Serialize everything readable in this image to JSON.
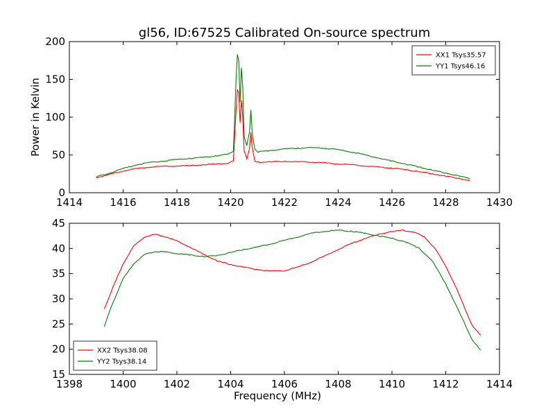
{
  "title": "gl56, ID:67525 Calibrated On-source spectrum",
  "chart_data": [
    {
      "type": "line",
      "ylabel": "Power in Kelvin",
      "xlabel": "",
      "xlim": [
        1414,
        1430
      ],
      "ylim": [
        0,
        200
      ],
      "xticks": [
        "1414",
        "1416",
        "1418",
        "1420",
        "1422",
        "1424",
        "1426",
        "1428",
        "1430"
      ],
      "yticks": [
        "0",
        "50",
        "100",
        "150",
        "200"
      ],
      "legend_position": "top-right",
      "series": [
        {
          "name": "XX1 Tsys35.57",
          "color": "#ff0000",
          "x": [
            1415.0,
            1415.5,
            1416.0,
            1416.5,
            1417.0,
            1417.5,
            1418.0,
            1418.5,
            1419.0,
            1419.5,
            1419.9,
            1420.1,
            1420.2,
            1420.25,
            1420.3,
            1420.35,
            1420.4,
            1420.45,
            1420.5,
            1420.6,
            1420.7,
            1420.75,
            1420.8,
            1420.9,
            1421.0,
            1421.5,
            1422.0,
            1422.5,
            1423.0,
            1423.5,
            1424.0,
            1424.5,
            1425.0,
            1425.5,
            1426.0,
            1426.5,
            1427.0,
            1427.5,
            1428.0,
            1428.5,
            1428.9
          ],
          "values": [
            20,
            24,
            29,
            32,
            34,
            35,
            35.5,
            36,
            37,
            38,
            39,
            42,
            110,
            136,
            132,
            93,
            122,
            100,
            55,
            45,
            58,
            80,
            60,
            42,
            40.5,
            41,
            41.5,
            41,
            40.5,
            39.5,
            38,
            37,
            35.5,
            34,
            32.5,
            30.5,
            28,
            25,
            22,
            19,
            16
          ]
        },
        {
          "name": "YY1 Tsys46.16",
          "color": "#008000",
          "x": [
            1415.0,
            1415.5,
            1416.0,
            1416.5,
            1417.0,
            1417.5,
            1418.0,
            1418.5,
            1419.0,
            1419.5,
            1419.9,
            1420.1,
            1420.2,
            1420.25,
            1420.3,
            1420.35,
            1420.4,
            1420.45,
            1420.5,
            1420.6,
            1420.7,
            1420.75,
            1420.8,
            1420.9,
            1421.0,
            1421.5,
            1422.0,
            1422.5,
            1423.0,
            1423.5,
            1424.0,
            1424.5,
            1425.0,
            1425.5,
            1426.0,
            1426.5,
            1427.0,
            1427.5,
            1428.0,
            1428.5,
            1428.9
          ],
          "values": [
            21,
            26,
            32,
            37,
            40,
            42,
            44,
            45.5,
            47,
            49,
            51,
            55,
            150,
            183,
            175,
            120,
            166,
            140,
            75,
            62,
            80,
            109,
            80,
            57,
            54,
            56,
            58,
            59,
            59.5,
            59,
            57,
            54,
            50,
            46,
            42,
            38,
            34,
            30,
            26,
            22,
            19
          ]
        }
      ]
    },
    {
      "type": "line",
      "xlabel": "Frequency (MHz)",
      "ylabel": "",
      "xlim": [
        1398,
        1414
      ],
      "ylim": [
        15,
        45
      ],
      "xticks": [
        "1398",
        "1400",
        "1402",
        "1404",
        "1406",
        "1408",
        "1410",
        "1412",
        "1414"
      ],
      "yticks": [
        "15",
        "20",
        "25",
        "30",
        "35",
        "40",
        "45"
      ],
      "legend_position": "bottom-left",
      "series": [
        {
          "name": "XX2 Tsys38.08",
          "color": "#ff0000",
          "x": [
            1399.3,
            1399.6,
            1400.0,
            1400.4,
            1400.8,
            1401.2,
            1401.6,
            1402.0,
            1402.5,
            1403.0,
            1403.5,
            1404.0,
            1404.5,
            1405.0,
            1405.5,
            1406.0,
            1406.5,
            1407.0,
            1407.5,
            1408.0,
            1408.5,
            1409.0,
            1409.5,
            1410.0,
            1410.4,
            1410.8,
            1411.2,
            1411.6,
            1412.0,
            1412.4,
            1412.8,
            1413.0,
            1413.3
          ],
          "values": [
            28,
            32,
            37,
            40.5,
            42.3,
            42.8,
            42.3,
            41.5,
            40.2,
            38.8,
            37.5,
            36.8,
            36.3,
            35.8,
            35.5,
            35.6,
            36.3,
            37.3,
            38.5,
            39.8,
            41,
            42,
            42.8,
            43.4,
            43.6,
            43.3,
            42.3,
            40,
            36.5,
            32,
            27,
            24.5,
            22.8
          ]
        },
        {
          "name": "YY2 Tsys38.14",
          "color": "#008000",
          "x": [
            1399.3,
            1399.6,
            1400.0,
            1400.4,
            1400.8,
            1401.2,
            1401.6,
            1402.0,
            1402.5,
            1403.0,
            1403.5,
            1404.0,
            1404.5,
            1405.0,
            1405.5,
            1406.0,
            1406.5,
            1407.0,
            1407.5,
            1408.0,
            1408.5,
            1409.0,
            1409.5,
            1410.0,
            1410.5,
            1411.0,
            1411.5,
            1412.0,
            1412.4,
            1412.8,
            1413.0,
            1413.3
          ],
          "values": [
            24.5,
            29,
            34,
            37,
            38.8,
            39.4,
            39.3,
            39,
            38.7,
            38.4,
            38.6,
            39.2,
            39.8,
            40.3,
            40.9,
            41.6,
            42.3,
            43,
            43.4,
            43.6,
            43.4,
            43,
            42.5,
            42,
            41.3,
            40.1,
            37.5,
            33,
            28.5,
            24,
            21.7,
            19.8
          ]
        }
      ]
    }
  ]
}
